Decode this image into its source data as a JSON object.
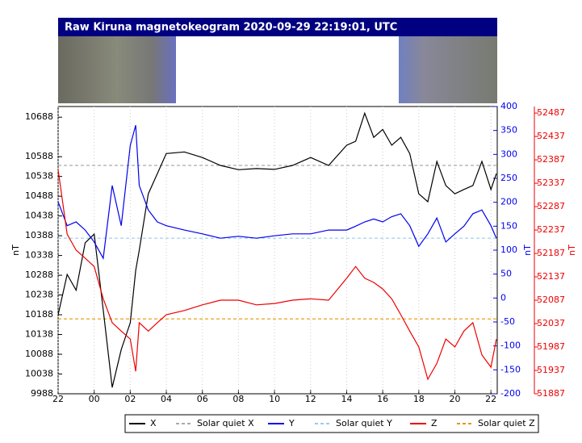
{
  "chart_data": {
    "type": "line",
    "title": "Raw Kiruna magnetokeogram 2020-09-29 22:19:01, UTC",
    "ylabel": "nT",
    "y2label": "nT",
    "y3label": "nT",
    "x": [
      -2,
      -1.5,
      -1,
      -0.5,
      0,
      0.5,
      1,
      1.5,
      2,
      2.3,
      2.5,
      3,
      3.5,
      4,
      5,
      6,
      7,
      8,
      9,
      10,
      11,
      12,
      13,
      14,
      14.5,
      15,
      15.5,
      16,
      16.5,
      17,
      17.5,
      18,
      18.5,
      19,
      19.5,
      20,
      20.5,
      21,
      21.5,
      22,
      22.3
    ],
    "xlim": [
      -2,
      22.35
    ],
    "xticks": [
      {
        "value": -2,
        "label": "22"
      },
      {
        "value": 0,
        "label": "00"
      },
      {
        "value": 2,
        "label": "02"
      },
      {
        "value": 4,
        "label": "04"
      },
      {
        "value": 6,
        "label": "06"
      },
      {
        "value": 8,
        "label": "08"
      },
      10,
      12,
      14,
      16,
      18,
      20,
      22
    ],
    "ylim": [
      9988,
      10715
    ],
    "yticks": [
      9988,
      10038,
      10088,
      10138,
      10188,
      10238,
      10288,
      10338,
      10388,
      10438,
      10488,
      10538,
      10588,
      10688
    ],
    "y2lim": [
      -200,
      400
    ],
    "y2ticks": [
      -200,
      -150,
      -100,
      -50,
      0,
      50,
      100,
      150,
      200,
      250,
      300,
      350,
      400
    ],
    "y3lim": [
      51887,
      52501
    ],
    "y3ticks": [
      51887,
      51937,
      51987,
      52037,
      52087,
      52137,
      52187,
      52237,
      52287,
      52337,
      52387,
      52437,
      52487
    ],
    "grid": true,
    "series": [
      {
        "name": "X",
        "color": "#000000",
        "axis": "y",
        "dashed": false,
        "values": [
          10188,
          10290,
          10250,
          10370,
          10392,
          10200,
          10004,
          10100,
          10168,
          10300,
          10351,
          10494,
          10545,
          10596,
          10600,
          10586,
          10566,
          10555,
          10558,
          10556,
          10566,
          10586,
          10566,
          10617,
          10627,
          10698,
          10637,
          10657,
          10617,
          10637,
          10596,
          10494,
          10474,
          10576,
          10515,
          10494,
          10505,
          10515,
          10576,
          10505,
          10545
        ]
      },
      {
        "name": "Solar quiet X",
        "color": "#aaaaaa",
        "axis": "y",
        "dashed": true,
        "values": [
          10566,
          10566,
          10566,
          10566,
          10566,
          10566,
          10566,
          10566,
          10566,
          10566,
          10566,
          10566,
          10566,
          10566,
          10566,
          10566,
          10566,
          10566,
          10566,
          10566,
          10566,
          10566,
          10566,
          10566,
          10566,
          10566,
          10566,
          10566,
          10566,
          10566,
          10566,
          10566,
          10566,
          10566,
          10566,
          10566,
          10566,
          10566,
          10566,
          10566,
          10566
        ]
      },
      {
        "name": "Y",
        "color": "#0000ee",
        "axis": "y2",
        "dashed": false,
        "values": [
          201,
          151,
          159,
          142,
          117,
          83,
          235,
          151,
          319,
          361,
          235,
          184,
          159,
          151,
          142,
          134,
          125,
          129,
          125,
          130,
          134,
          134,
          142,
          142,
          150,
          159,
          165,
          159,
          170,
          176,
          151,
          108,
          134,
          167,
          117,
          134,
          150,
          176,
          184,
          151,
          125
        ]
      },
      {
        "name": "Solar quiet Y",
        "color": "#99ccee",
        "axis": "y2",
        "dashed": true,
        "values": [
          125,
          125,
          125,
          125,
          125,
          125,
          125,
          125,
          125,
          125,
          125,
          125,
          125,
          125,
          125,
          125,
          125,
          125,
          125,
          125,
          125,
          125,
          125,
          125,
          125,
          125,
          125,
          125,
          125,
          125,
          125,
          125,
          125,
          125,
          125,
          125,
          125,
          125,
          125,
          125,
          125
        ]
      },
      {
        "name": "Z",
        "color": "#ee0000",
        "axis": "y3",
        "dashed": false,
        "values": [
          52366,
          52228,
          52194,
          52177,
          52159,
          52090,
          52039,
          52021,
          52004,
          51935,
          52039,
          52021,
          52039,
          52056,
          52065,
          52077,
          52087,
          52087,
          52077,
          52080,
          52087,
          52090,
          52087,
          52134,
          52159,
          52134,
          52125,
          52111,
          52090,
          52056,
          52021,
          51987,
          51918,
          51952,
          52004,
          51987,
          52021,
          52039,
          51970,
          51944,
          52004
        ]
      },
      {
        "name": "Solar quiet Z",
        "color": "#e69500",
        "axis": "y3",
        "dashed": true,
        "values": [
          52047,
          52047,
          52047,
          52047,
          52047,
          52047,
          52047,
          52047,
          52047,
          52047,
          52047,
          52047,
          52047,
          52047,
          52047,
          52047,
          52047,
          52047,
          52047,
          52047,
          52047,
          52047,
          52047,
          52047,
          52047,
          52047,
          52047,
          52047,
          52047,
          52047,
          52047,
          52047,
          52047,
          52047,
          52047,
          52047,
          52047,
          52047,
          52047,
          52047,
          52047
        ]
      }
    ]
  }
}
